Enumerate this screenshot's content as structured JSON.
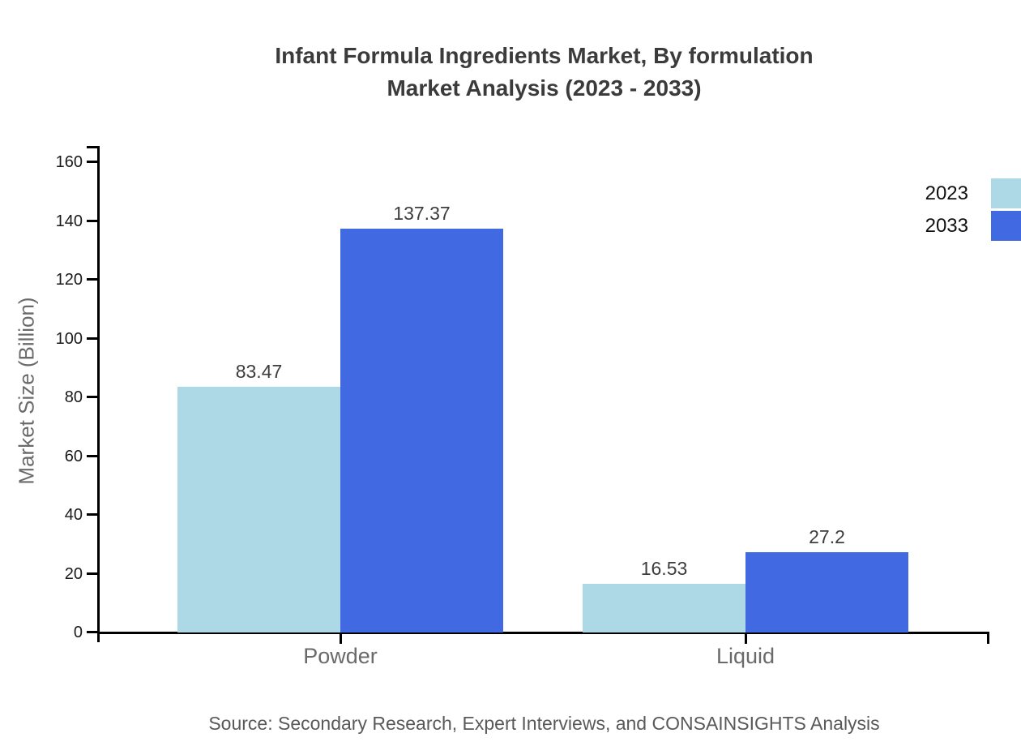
{
  "title": {
    "line1": "Infant Formula Ingredients Market, By formulation",
    "line2": "Market Analysis (2023 - 2033)"
  },
  "source_note": "Source: Secondary Research, Expert Interviews, and CONSAINSIGHTS Analysis",
  "legend": {
    "items": [
      {
        "label": "2023",
        "color": "#ADD8E6"
      },
      {
        "label": "2033",
        "color": "#4169E1"
      }
    ]
  },
  "colors": {
    "series_2023": "#ADD8E6",
    "series_2033": "#4169E1",
    "axis": "#000000",
    "title_text": "#3b3b3b",
    "value_label": "#3d3d3d",
    "category_label": "#6a6a6a",
    "axis_title": "#6a6a6a",
    "tick_label": "#1a1a1a",
    "source_text": "#595959",
    "background": "#ffffff"
  },
  "chart_data": {
    "type": "bar",
    "title": "Infant Formula Ingredients Market, By formulation Market Analysis (2023 - 2033)",
    "categories": [
      "Powder",
      "Liquid"
    ],
    "series": [
      {
        "name": "2023",
        "color": "#ADD8E6",
        "values": [
          83.47,
          16.53
        ],
        "value_labels": [
          "83.47",
          "16.53"
        ]
      },
      {
        "name": "2033",
        "color": "#4169E1",
        "values": [
          137.37,
          27.2
        ],
        "value_labels": [
          "137.37",
          "27.2"
        ]
      }
    ],
    "xlabel": "",
    "ylabel": "Market Size (Billion)",
    "ylim": [
      0,
      160
    ],
    "yticks": [
      0,
      20,
      40,
      60,
      80,
      100,
      120,
      140,
      160
    ],
    "grid": false,
    "legend_position": "top-right",
    "value_labels_shown": true
  }
}
